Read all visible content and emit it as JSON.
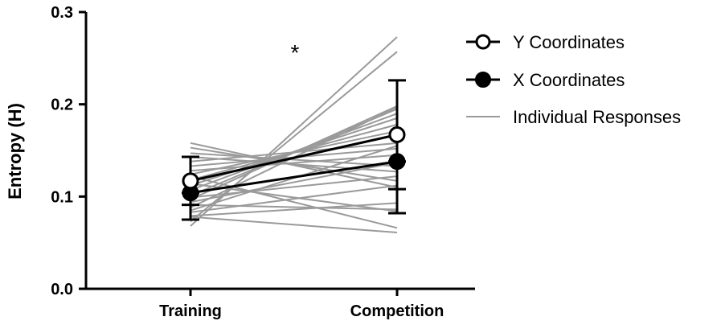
{
  "chart_data": {
    "type": "line",
    "title": "",
    "xlabel": "",
    "ylabel": "Entropy (H)",
    "categories": [
      "Training",
      "Competition"
    ],
    "ylim": [
      0,
      0.3
    ],
    "yticks": [
      "0.0",
      "0.1",
      "0.2",
      "0.3"
    ],
    "grid": false,
    "legend_position": "top-right",
    "annotation": "*",
    "series": [
      {
        "name": "Y Coordinates",
        "marker": "open-circle",
        "color": "#000000",
        "values": [
          0.117,
          0.167
        ],
        "error_bars": [
          [
            0.091,
            0.143
          ],
          [
            0.108,
            0.226
          ]
        ]
      },
      {
        "name": "X Coordinates",
        "marker": "filled-circle",
        "color": "#000000",
        "values": [
          0.104,
          0.138
        ],
        "error_bars": [
          [
            0.075,
            0.104
          ],
          [
            0.082,
            0.138
          ]
        ]
      }
    ],
    "individual_series_name": "Individual Responses",
    "individual_color": "#9a9a9a",
    "individual_responses": [
      [
        0.068,
        0.273
      ],
      [
        0.073,
        0.257
      ],
      [
        0.097,
        0.198
      ],
      [
        0.101,
        0.195
      ],
      [
        0.107,
        0.19
      ],
      [
        0.112,
        0.185
      ],
      [
        0.118,
        0.178
      ],
      [
        0.124,
        0.171
      ],
      [
        0.133,
        0.152
      ],
      [
        0.138,
        0.158
      ],
      [
        0.143,
        0.127
      ],
      [
        0.147,
        0.133
      ],
      [
        0.153,
        0.117
      ],
      [
        0.158,
        0.11
      ],
      [
        0.128,
        0.145
      ],
      [
        0.088,
        0.197
      ],
      [
        0.094,
        0.137
      ],
      [
        0.083,
        0.112
      ],
      [
        0.079,
        0.093
      ],
      [
        0.091,
        0.086
      ],
      [
        0.114,
        0.084
      ],
      [
        0.122,
        0.066
      ],
      [
        0.078,
        0.061
      ],
      [
        0.085,
        0.155
      ],
      [
        0.099,
        0.122
      ]
    ]
  }
}
